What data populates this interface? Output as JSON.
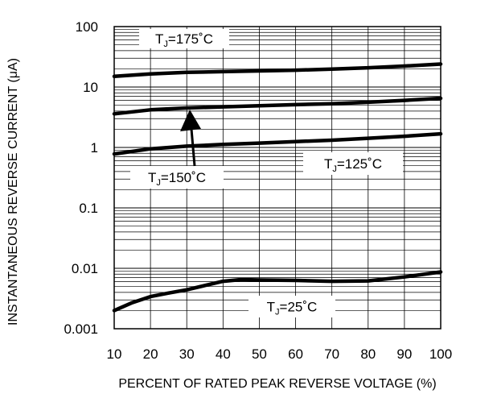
{
  "chart_data": {
    "type": "line",
    "title": "",
    "xlabel": "PERCENT OF RATED PEAK REVERSE VOLTAGE (%)",
    "ylabel": "INSTANTANEOUS REVERSE CURRENT (μA)",
    "x_ticks": [
      "10",
      "20",
      "30",
      "40",
      "50",
      "60",
      "70",
      "80",
      "90",
      "100"
    ],
    "y_ticks": [
      "0.001",
      "0.01",
      "0.1",
      "1",
      "10",
      "100"
    ],
    "xlim": [
      10,
      100
    ],
    "ylim": [
      0.001,
      100
    ],
    "y_scale": "log",
    "grid": true,
    "colors": {
      "line": "#000000",
      "grid": "#000000",
      "background": "#ffffff"
    },
    "series": [
      {
        "label_main": "T",
        "label_sub": "J",
        "label_rest": "=175˚C",
        "x": [
          10,
          20,
          30,
          40,
          50,
          60,
          70,
          80,
          90,
          100
        ],
        "y": [
          15,
          16.5,
          17.5,
          18,
          18.5,
          19,
          19.8,
          20.8,
          22.2,
          24
        ]
      },
      {
        "label_main": "T",
        "label_sub": "J",
        "label_rest": "=150˚C",
        "x": [
          10,
          20,
          30,
          40,
          50,
          60,
          70,
          80,
          90,
          100
        ],
        "y": [
          3.6,
          4.2,
          4.5,
          4.7,
          4.9,
          5.1,
          5.3,
          5.6,
          6.0,
          6.5
        ]
      },
      {
        "label_main": "T",
        "label_sub": "J",
        "label_rest": "=125˚C",
        "x": [
          10,
          20,
          30,
          40,
          50,
          60,
          70,
          80,
          90,
          100
        ],
        "y": [
          0.78,
          0.95,
          1.05,
          1.12,
          1.18,
          1.25,
          1.32,
          1.42,
          1.53,
          1.68
        ]
      },
      {
        "label_main": "T",
        "label_sub": "J",
        "label_rest": "=25˚C",
        "x": [
          10,
          15,
          20,
          25,
          30,
          35,
          40,
          45,
          50,
          60,
          70,
          80,
          90,
          100
        ],
        "y": [
          0.002,
          0.0027,
          0.0034,
          0.0039,
          0.0044,
          0.0052,
          0.0061,
          0.0065,
          0.0064,
          0.0063,
          0.0061,
          0.0062,
          0.0072,
          0.0087
        ]
      }
    ]
  }
}
